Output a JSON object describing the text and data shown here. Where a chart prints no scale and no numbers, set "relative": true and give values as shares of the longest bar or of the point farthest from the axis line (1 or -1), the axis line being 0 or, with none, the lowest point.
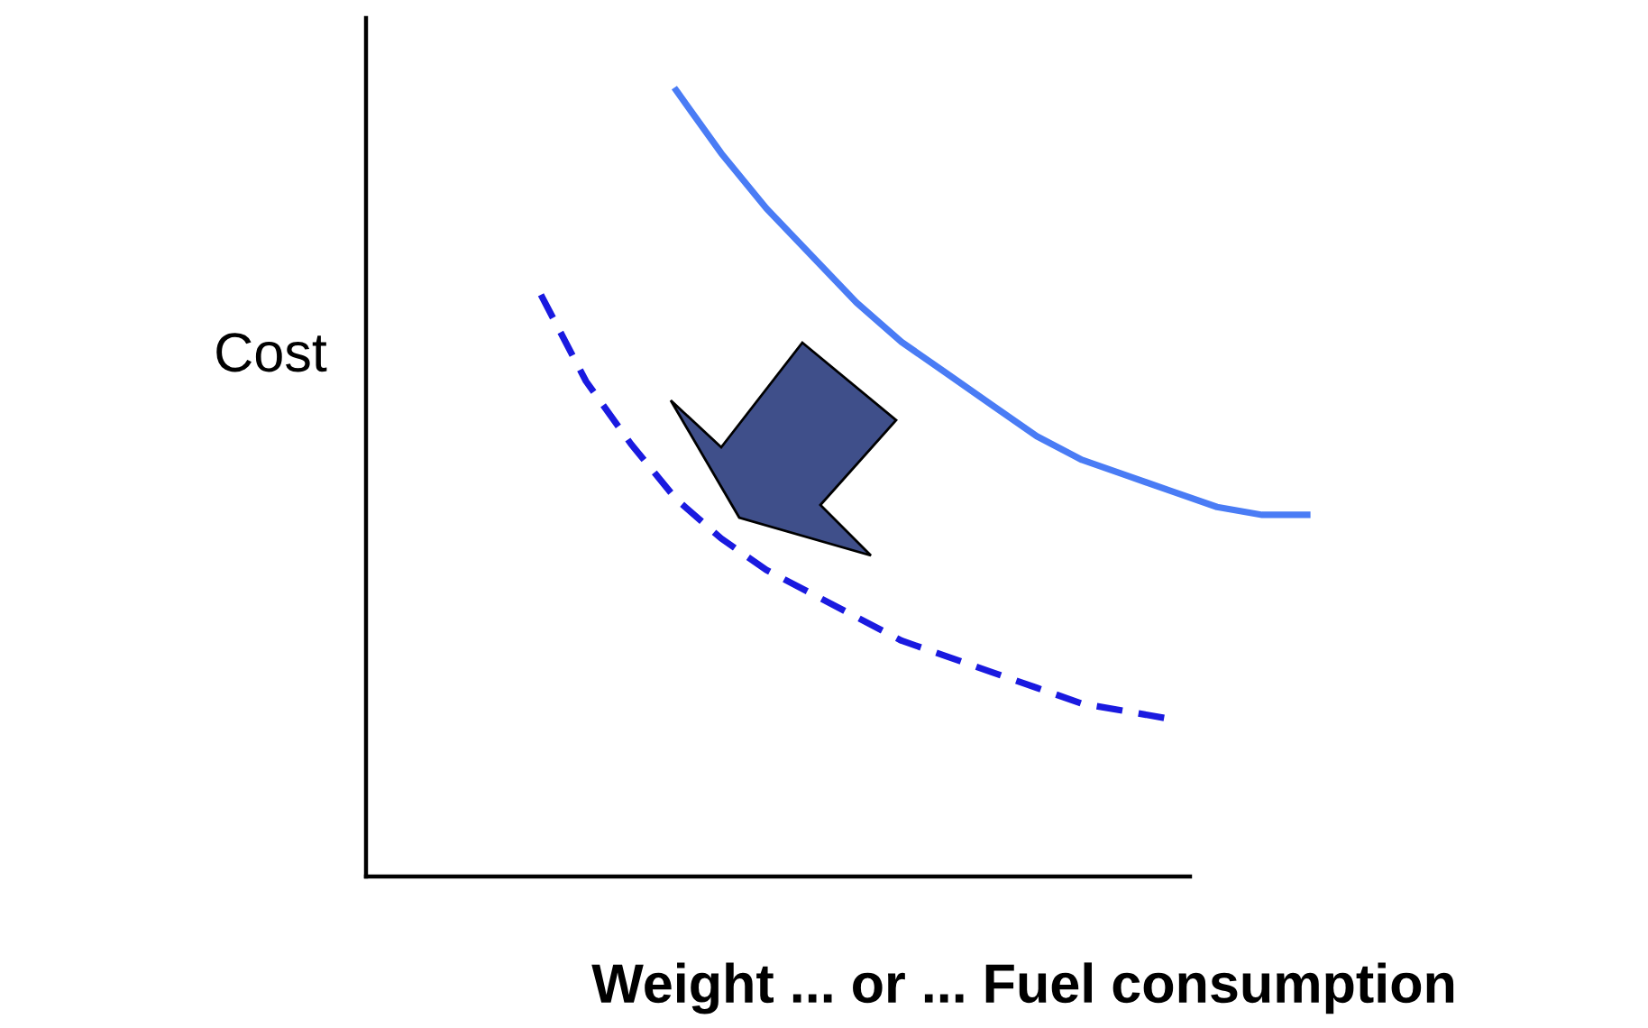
{
  "chart_data": {
    "type": "line",
    "relative": true,
    "xlabel": "Weight ... or ... Fuel consumption",
    "ylabel": "Cost",
    "categories": [
      null,
      null,
      null,
      null,
      null,
      null,
      null,
      null,
      null,
      null,
      null,
      null,
      null,
      null,
      null,
      null,
      null,
      null
    ],
    "series": [
      {
        "color": "#4a7cf5",
        "line_style": "solid",
        "values": [
          null,
          null,
          null,
          1.0,
          0.92,
          0.85,
          0.79,
          0.73,
          0.68,
          0.64,
          0.6,
          0.56,
          0.53,
          0.51,
          0.49,
          0.47,
          0.46,
          0.46
        ]
      },
      {
        "color": "#1a1ae0",
        "line_style": "dashed",
        "values": [
          0.74,
          0.63,
          0.55,
          0.48,
          0.43,
          0.39,
          0.36,
          0.33,
          0.3,
          0.28,
          0.26,
          0.24,
          0.22,
          0.21,
          0.2,
          null,
          null,
          null
        ]
      }
    ],
    "legend": false,
    "marker": "none"
  }
}
